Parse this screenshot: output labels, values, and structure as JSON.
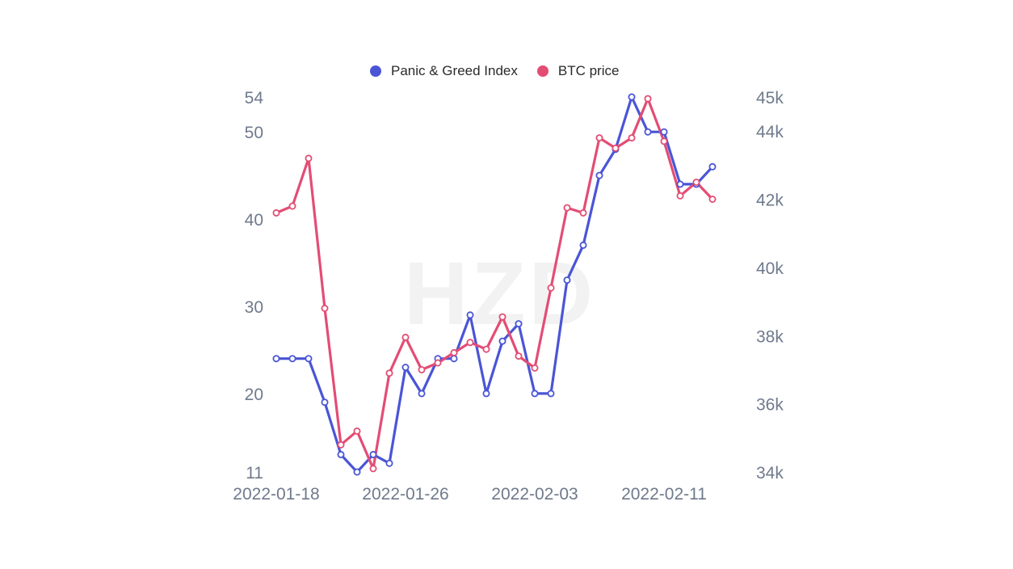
{
  "watermark": "HZD",
  "colors": {
    "panic_greed": "#4a55d6",
    "btc": "#e34d74",
    "tick": "#6f7a8c"
  },
  "chart_data": {
    "type": "line",
    "legend_position": "top-center",
    "grid": false,
    "x": [
      "2022-01-18",
      "2022-01-19",
      "2022-01-20",
      "2022-01-21",
      "2022-01-22",
      "2022-01-23",
      "2022-01-24",
      "2022-01-25",
      "2022-01-26",
      "2022-01-27",
      "2022-01-28",
      "2022-01-29",
      "2022-01-30",
      "2022-01-31",
      "2022-02-01",
      "2022-02-02",
      "2022-02-03",
      "2022-02-04",
      "2022-02-05",
      "2022-02-06",
      "2022-02-07",
      "2022-02-08",
      "2022-02-09",
      "2022-02-10",
      "2022-02-11",
      "2022-02-12",
      "2022-02-13",
      "2022-02-14"
    ],
    "x_tick_labels": [
      "2022-01-18",
      "2022-01-26",
      "2022-02-03",
      "2022-02-11"
    ],
    "x_tick_dates": [
      "2022-01-18",
      "2022-01-26",
      "2022-02-03",
      "2022-02-11"
    ],
    "y_left": {
      "ylim": [
        11,
        54
      ],
      "ticks": [
        11,
        20,
        30,
        40,
        50,
        54
      ],
      "tick_labels": [
        "11",
        "20",
        "30",
        "40",
        "50",
        "54"
      ]
    },
    "y_right": {
      "ylim": [
        34000,
        45000
      ],
      "ticks": [
        34000,
        36000,
        38000,
        40000,
        42000,
        44000,
        45000
      ],
      "tick_labels": [
        "34k",
        "36k",
        "38k",
        "40k",
        "42k",
        "44k",
        "45k"
      ]
    },
    "series": [
      {
        "name": "Panic & Greed Index",
        "axis": "left",
        "color": "#4a55d6",
        "values": [
          24,
          24,
          24,
          19,
          13,
          11,
          13,
          12,
          23,
          20,
          24,
          24,
          29,
          20,
          26,
          28,
          20,
          20,
          33,
          37,
          45,
          48,
          54,
          50,
          50,
          44,
          44,
          46
        ]
      },
      {
        "name": "BTC price",
        "axis": "right",
        "color": "#e34d74",
        "values": [
          41600,
          41800,
          43200,
          38800,
          34800,
          35200,
          34100,
          36900,
          37950,
          37000,
          37200,
          37500,
          37800,
          37600,
          38550,
          37400,
          37050,
          39400,
          41750,
          41600,
          43800,
          43500,
          43800,
          44950,
          43700,
          42100,
          42500,
          42000
        ]
      }
    ]
  }
}
